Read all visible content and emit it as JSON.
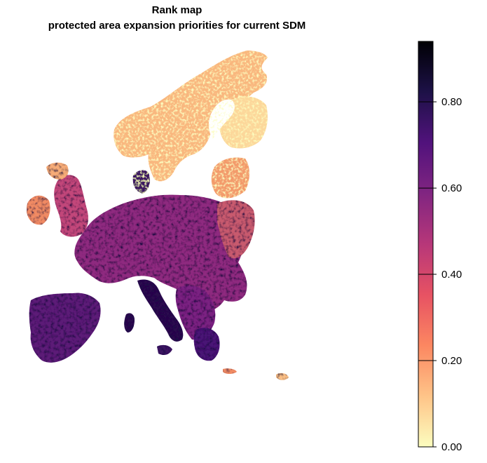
{
  "title": {
    "line1": "Rank map",
    "line2": "protected area expansion priorities for current SDM"
  },
  "legend": {
    "min": 0.0,
    "max": 0.94,
    "ticks": [
      {
        "value": 0.0,
        "label": "0.00"
      },
      {
        "value": 0.2,
        "label": "0.20"
      },
      {
        "value": 0.4,
        "label": "0.40"
      },
      {
        "value": 0.6,
        "label": "0.60"
      },
      {
        "value": 0.8,
        "label": "0.80"
      }
    ],
    "colors": [
      "#fcfdbf",
      "#fec488",
      "#fc8761",
      "#e75263",
      "#b73779",
      "#812581",
      "#51127c",
      "#1d1147",
      "#000004"
    ]
  },
  "map": {
    "subject": "Europe",
    "land_color_range": [
      "#fcfdbf",
      "#000004"
    ]
  }
}
